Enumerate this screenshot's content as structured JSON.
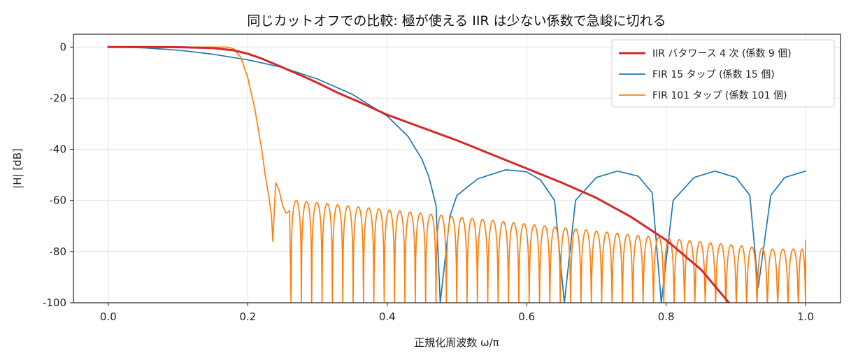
{
  "chart_data": {
    "type": "line",
    "title": "同じカットオフでの比較: 極が使える IIR は少ない係数で急峻に切れる",
    "xlabel": "正規化周波数 ω/π",
    "ylabel": "|H| [dB]",
    "xlim": [
      -0.05,
      1.05
    ],
    "ylim": [
      -100,
      5
    ],
    "xticks": [
      0.0,
      0.2,
      0.4,
      0.6,
      0.8,
      1.0
    ],
    "xtick_labels": [
      "0.0",
      "0.2",
      "0.4",
      "0.6",
      "0.8",
      "1.0"
    ],
    "yticks": [
      0,
      -20,
      -40,
      -60,
      -80,
      -100
    ],
    "ytick_labels": [
      "0",
      "-20",
      "-40",
      "-60",
      "-80",
      "-100"
    ],
    "grid": true,
    "legend_position": "top-right",
    "series": [
      {
        "name": "IIR バタワース 4 次 (係数 9 個)",
        "color": "#d62728",
        "style": "thick",
        "x": [
          0.0,
          0.05,
          0.1,
          0.15,
          0.18,
          0.2,
          0.22,
          0.25,
          0.28,
          0.3,
          0.33,
          0.36,
          0.4,
          0.45,
          0.5,
          0.55,
          0.6,
          0.65,
          0.7,
          0.75,
          0.8,
          0.85,
          0.89
        ],
        "y": [
          0.0,
          0.0,
          -0.05,
          -0.4,
          -1.3,
          -2.6,
          -4.5,
          -8.0,
          -11.5,
          -14.0,
          -18.0,
          -21.5,
          -26.5,
          -31.5,
          -36.5,
          -42.0,
          -47.5,
          -53.0,
          -59.0,
          -66.5,
          -75.5,
          -87.0,
          -100.0
        ]
      },
      {
        "name": "FIR 15 タップ (係数 15 個)",
        "color": "#1f77b4",
        "style": "thin",
        "x": [
          0.0,
          0.05,
          0.1,
          0.15,
          0.2,
          0.25,
          0.3,
          0.35,
          0.4,
          0.43,
          0.45,
          0.46,
          0.47,
          0.476,
          0.49,
          0.5,
          0.53,
          0.57,
          0.6,
          0.62,
          0.64,
          0.654,
          0.67,
          0.7,
          0.73,
          0.76,
          0.78,
          0.793,
          0.81,
          0.84,
          0.87,
          0.9,
          0.92,
          0.932,
          0.95,
          0.97,
          1.0
        ],
        "y": [
          0.0,
          -0.3,
          -1.2,
          -2.8,
          -5.0,
          -8.0,
          -12.5,
          -18.5,
          -27.0,
          -35.0,
          -44.0,
          -51.0,
          -62.0,
          -100.0,
          -66.0,
          -58.0,
          -51.5,
          -48.0,
          -48.8,
          -52.0,
          -60.0,
          -100.0,
          -60.0,
          -51.0,
          -48.5,
          -50.5,
          -57.0,
          -100.0,
          -60.0,
          -51.0,
          -48.5,
          -51.0,
          -58.0,
          -94.0,
          -58.0,
          -51.0,
          -48.5
        ]
      },
      {
        "name": "FIR 101 タップ (係数 101 個)",
        "color": "#ff7f0e",
        "style": "thin",
        "x": [
          0.0,
          0.05,
          0.1,
          0.15,
          0.17,
          0.18,
          0.19,
          0.2,
          0.21,
          0.22,
          0.225,
          0.23,
          0.234,
          0.236,
          0.24,
          0.245,
          0.25,
          0.255,
          0.26
        ],
        "y": [
          0.0,
          0.0,
          0.0,
          0.0,
          0.0,
          -0.7,
          -4.0,
          -12.0,
          -24.0,
          -40.0,
          -50.0,
          -58.0,
          -66.0,
          -76.0,
          -53.0,
          -56.0,
          -62.0,
          -65.0,
          -64.0
        ],
        "ripple": {
          "start": 0.262,
          "end": 1.0,
          "lobe_width": 0.01485,
          "peak_db": [
            -60,
            -79
          ],
          "null_db": -100,
          "end_db": -75.5
        }
      }
    ]
  }
}
